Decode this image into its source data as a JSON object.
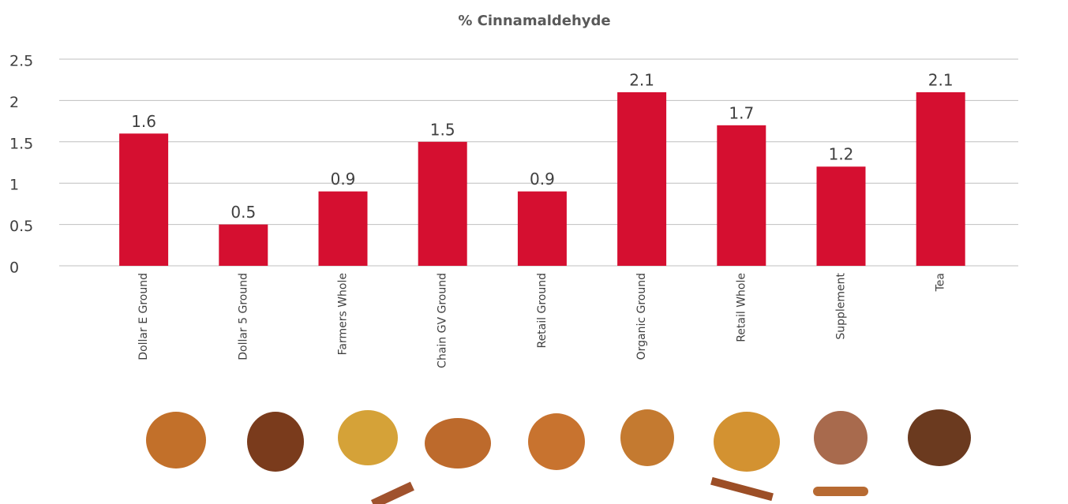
{
  "chart_data": {
    "type": "bar",
    "title": "% Cinnamaldehyde",
    "categories": [
      "Dollar E Ground",
      "Dollar 5 Ground",
      "Farmers Whole",
      "Chain GV Ground",
      "Retail Ground",
      "Organic Ground",
      "Retail Whole",
      "Supplement",
      "Tea"
    ],
    "values": [
      1.6,
      0.5,
      0.9,
      1.5,
      0.9,
      2.1,
      1.7,
      1.2,
      2.1
    ],
    "color": "#d50f30",
    "ylim": [
      0,
      2.5
    ],
    "yticks": [
      0,
      0.5,
      1,
      1.5,
      2,
      2.5
    ],
    "grid": true
  }
}
